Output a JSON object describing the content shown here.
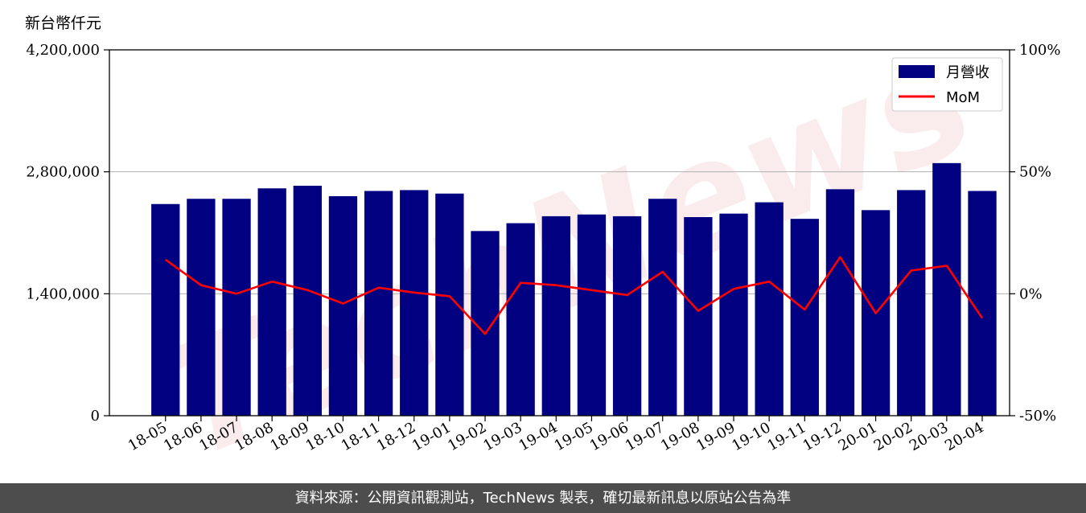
{
  "unit_label": "新台幣仟元",
  "footer_text": "資料來源：公開資訊觀測站，TechNews 製表，確切最新訊息以原站公告為準",
  "watermark": "TechNews",
  "colors": {
    "bar": "#000080",
    "line": "#ff0000",
    "grid": "#b0b0b0",
    "footer_bg": "#4d4d4d",
    "watermark": "#f6dede"
  },
  "chart_data": {
    "type": "bar",
    "categories": [
      "18-05",
      "18-06",
      "18-07",
      "18-08",
      "18-09",
      "18-10",
      "18-11",
      "18-12",
      "19-01",
      "19-02",
      "19-03",
      "19-04",
      "19-05",
      "19-06",
      "19-07",
      "19-08",
      "19-09",
      "19-10",
      "19-11",
      "19-12",
      "20-01",
      "20-02",
      "20-03",
      "20-04"
    ],
    "series": [
      {
        "name": "月營收",
        "type": "bar",
        "axis": "left",
        "values": [
          2430000,
          2490000,
          2490000,
          2610000,
          2640000,
          2520000,
          2580000,
          2590000,
          2550000,
          2120000,
          2210000,
          2290000,
          2310000,
          2290000,
          2490000,
          2280000,
          2320000,
          2450000,
          2260000,
          2600000,
          2360000,
          2590000,
          2900000,
          2580000
        ]
      },
      {
        "name": "MoM",
        "type": "line",
        "axis": "right",
        "values": [
          14,
          3.5,
          0,
          5,
          1.5,
          -4,
          2.5,
          0.5,
          -1,
          -16.5,
          4.5,
          3.5,
          1.5,
          -0.5,
          9,
          -7,
          2,
          5,
          -6.5,
          15,
          -8,
          9.5,
          11.5,
          -10
        ]
      }
    ],
    "y_left": {
      "range": [
        0,
        4200000
      ],
      "ticks": [
        0,
        1400000,
        2800000,
        4200000
      ],
      "tick_labels": [
        "0",
        "1,400,000",
        "2,800,000",
        "4,200,000"
      ]
    },
    "y_right": {
      "range": [
        -50,
        100
      ],
      "ticks": [
        -50,
        0,
        50,
        100
      ],
      "tick_labels": [
        "-50%",
        "0%",
        "50%",
        "100%"
      ]
    },
    "grid": "horizontal",
    "legend_position": "top-right"
  }
}
